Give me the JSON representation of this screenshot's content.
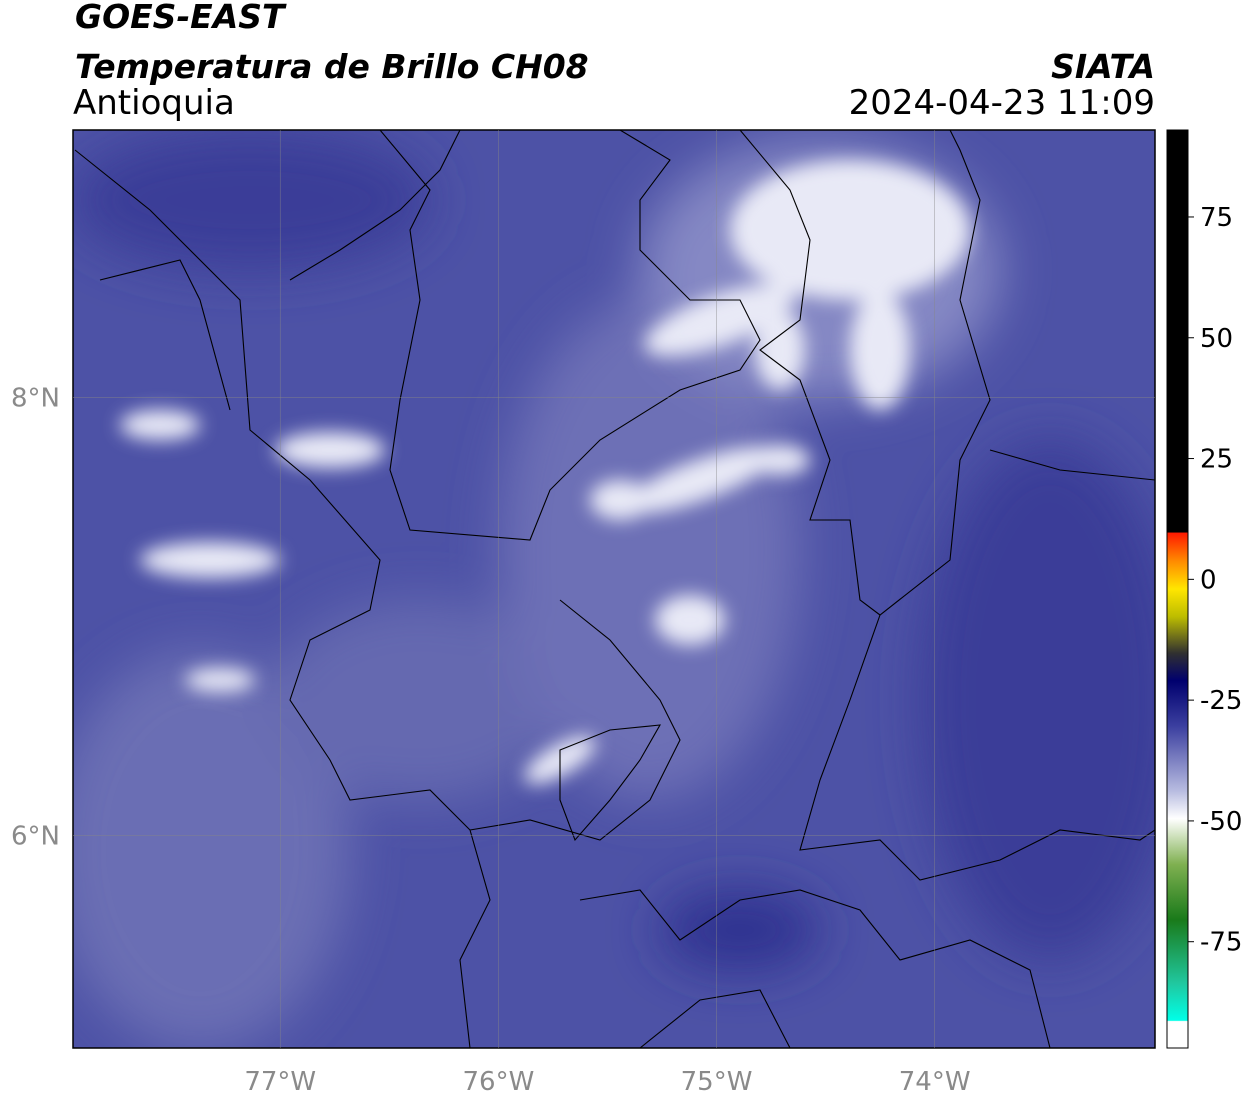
{
  "header": {
    "agency": "GOES-EAST",
    "product": "Temperatura de Brillo CH08",
    "region": "Antioquia",
    "source": "SIATA",
    "timestamp": "2024-04-23 11:09"
  },
  "map": {
    "lonlim": [
      -77.95,
      -72.99
    ],
    "latlim": [
      5.03,
      9.22
    ],
    "lonticks": [
      {
        "value": -77,
        "label": "77°W"
      },
      {
        "value": -76,
        "label": "76°W"
      },
      {
        "value": -75,
        "label": "75°W"
      },
      {
        "value": -74,
        "label": "74°W"
      }
    ],
    "latticks": [
      {
        "value": 6,
        "label": "6°N"
      },
      {
        "value": 8,
        "label": "8°N"
      }
    ],
    "grid": true
  },
  "colorbar": {
    "lim": [
      -97,
      93
    ],
    "ticks": [
      -75,
      -50,
      -25,
      0,
      25,
      50,
      75
    ]
  }
}
